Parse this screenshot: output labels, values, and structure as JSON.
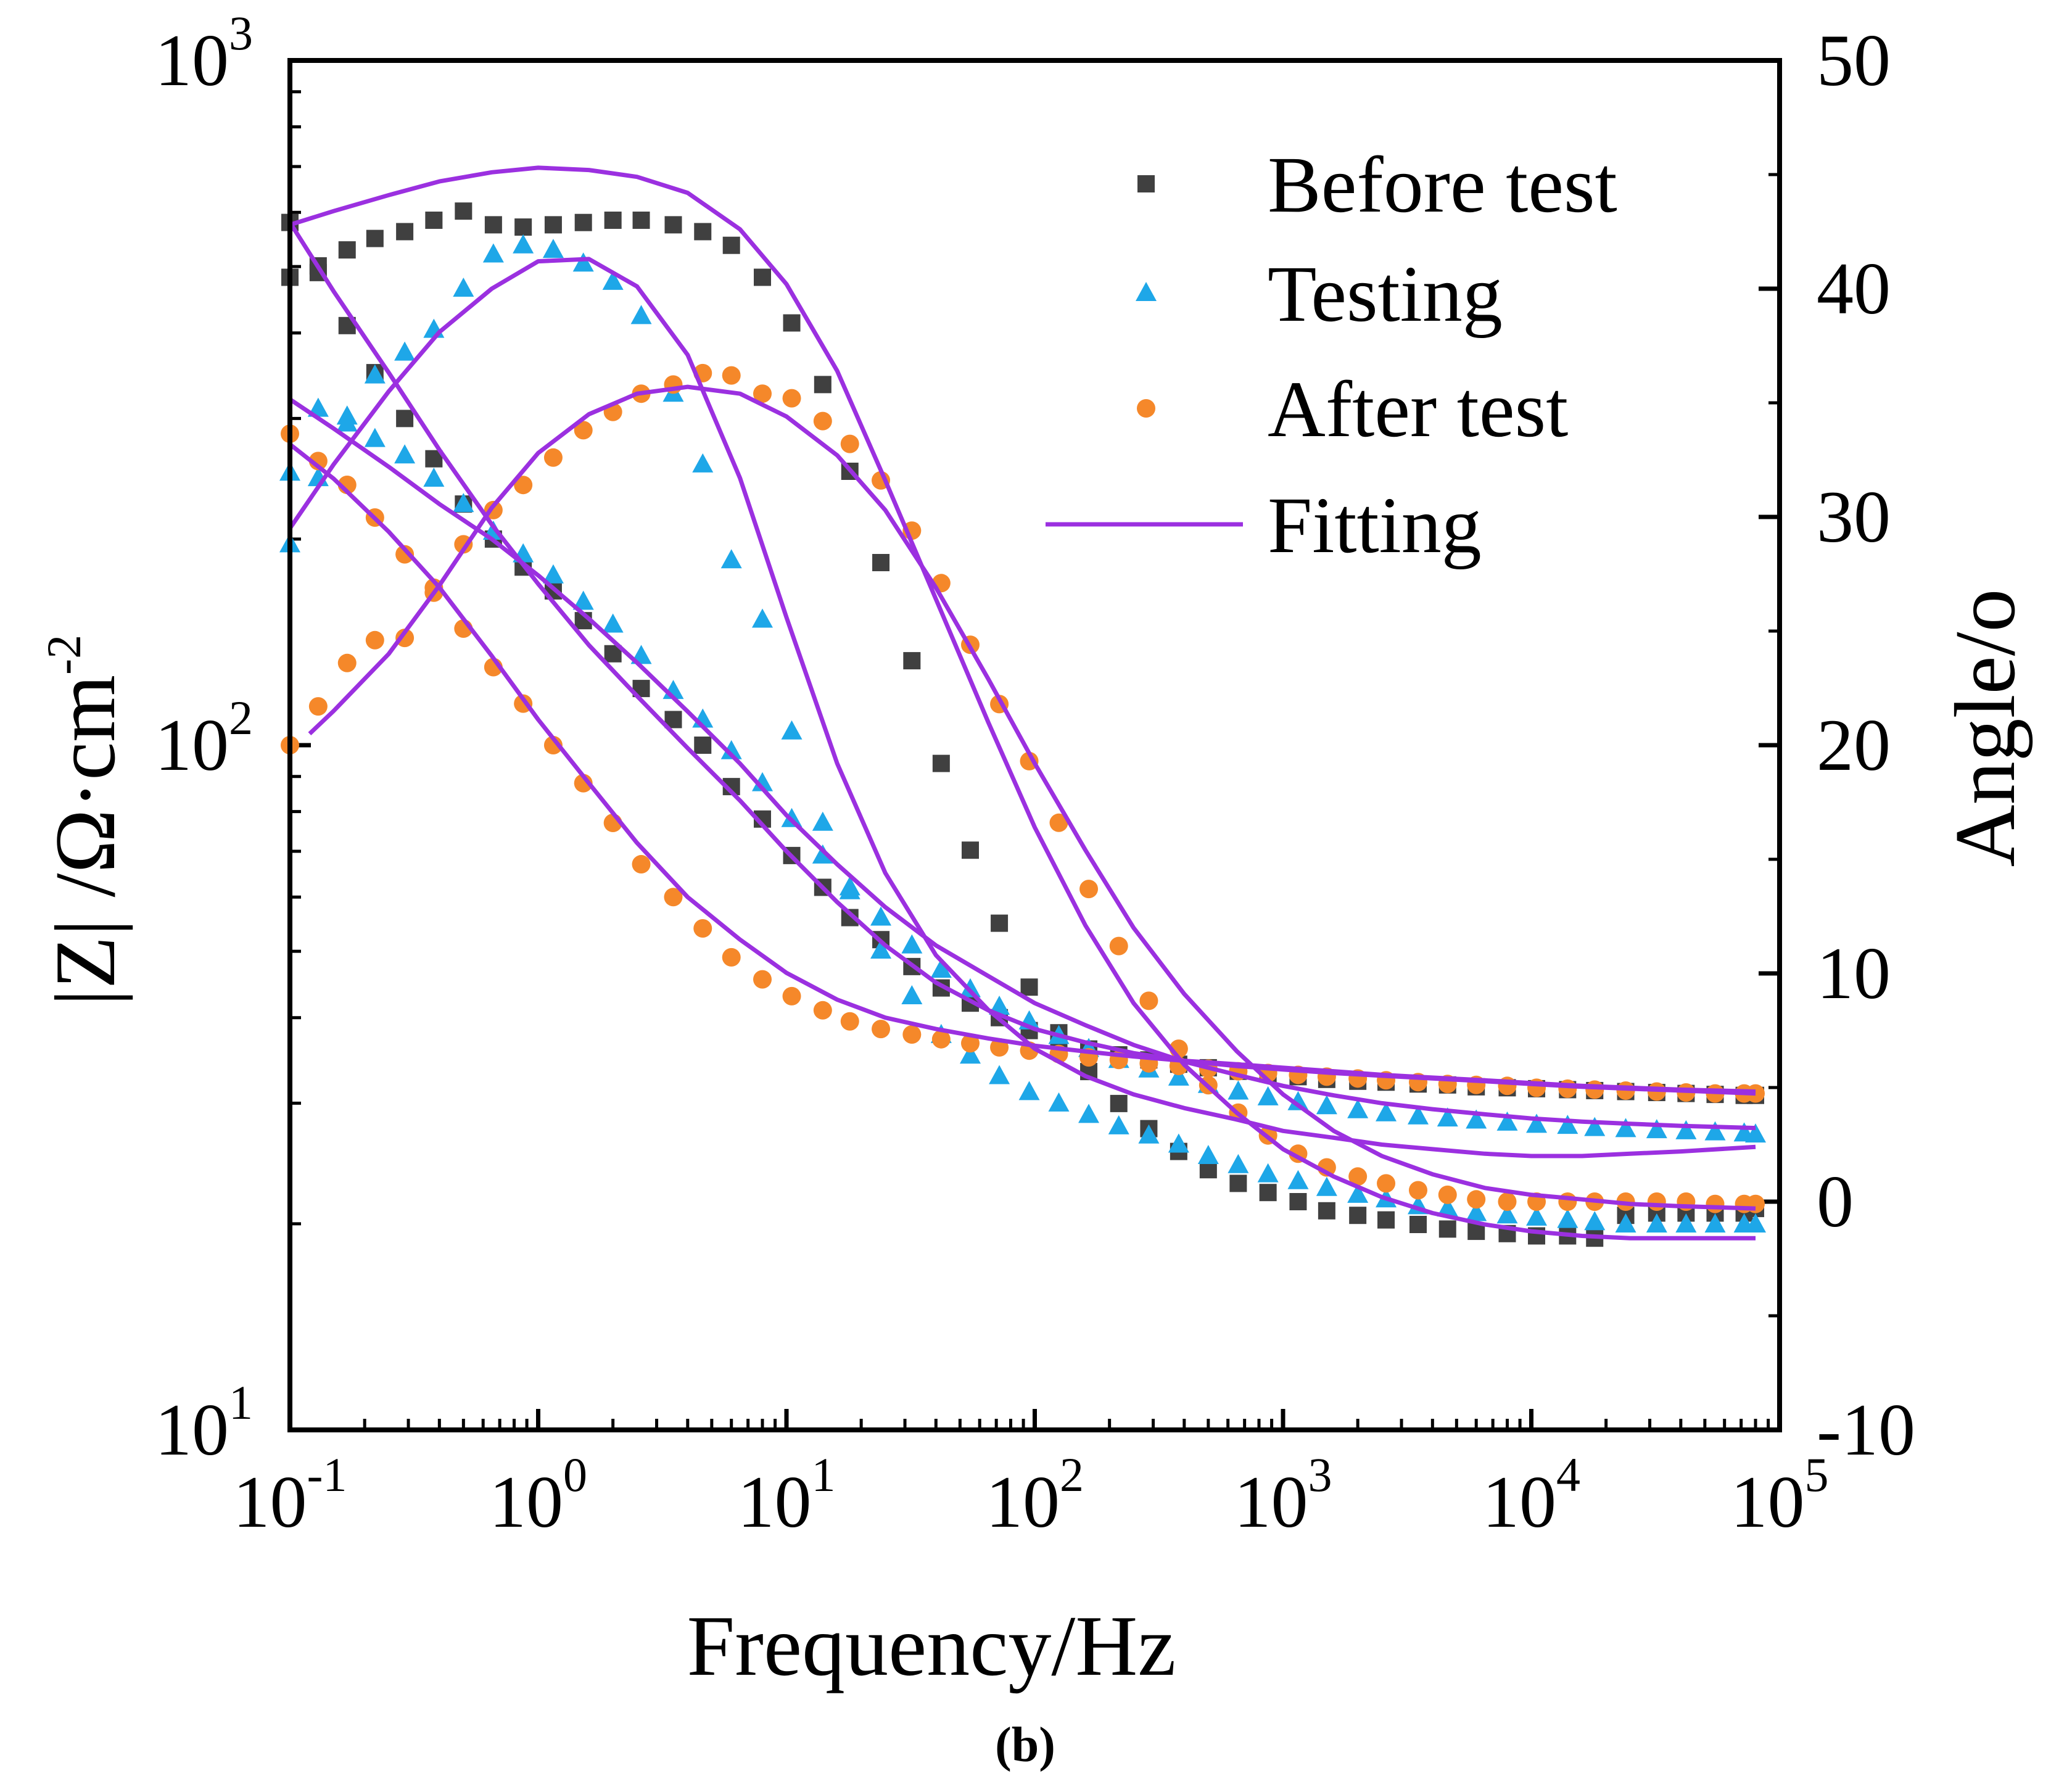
{
  "chart_data": {
    "type": "scatter",
    "caption": "b",
    "xlabel": "Frequency/Hz",
    "ylabel_left_pre": "|Z|",
    "ylabel_left_unit": " /Ω·cm",
    "ylabel_left_exp": "-2",
    "ylabel_right": "Angle/o",
    "x_scale": "log",
    "xlim": [
      0.1,
      100000
    ],
    "ylim_left": [
      10,
      1000
    ],
    "ylim_right": [
      -10,
      50
    ],
    "x_ticks": [
      {
        "value": 0.1,
        "base": "10",
        "exp": "-1"
      },
      {
        "value": 1,
        "base": "10",
        "exp": "0"
      },
      {
        "value": 10,
        "base": "10",
        "exp": "1"
      },
      {
        "value": 100,
        "base": "10",
        "exp": "2"
      },
      {
        "value": 1000,
        "base": "10",
        "exp": "3"
      },
      {
        "value": 10000,
        "base": "10",
        "exp": "4"
      },
      {
        "value": 100000,
        "base": "10",
        "exp": "5"
      }
    ],
    "y_left_ticks": [
      {
        "value": 10,
        "base": "10",
        "exp": "1"
      },
      {
        "value": 100,
        "base": "10",
        "exp": "2"
      },
      {
        "value": 1000,
        "base": "10",
        "exp": "3"
      }
    ],
    "y_right_ticks": [
      "-10",
      "0",
      "10",
      "20",
      "30",
      "40",
      "50"
    ],
    "legend": {
      "placement": "top-right",
      "entries": [
        {
          "label": "Before test",
          "marker": "square",
          "color": "#404040"
        },
        {
          "label": "Testing",
          "marker": "triangle",
          "color": "#1ea7e8"
        },
        {
          "label": "After test",
          "marker": "circle",
          "color": "#f5882a"
        },
        {
          "label": "Fitting",
          "marker": "line",
          "color": "#9b30e0"
        }
      ]
    },
    "series": [
      {
        "name": "Before test",
        "quantity": "impedance",
        "axis": "left",
        "marker": "square",
        "color": "#404040",
        "x": [
          0.1,
          0.13,
          0.17,
          0.22,
          0.29,
          0.38,
          0.5,
          0.66,
          0.87,
          1.15,
          1.52,
          2,
          2.6,
          3.5,
          4.6,
          6,
          8,
          10.5,
          14,
          18,
          24,
          32,
          42,
          55,
          72,
          95,
          125,
          165,
          218,
          288,
          380,
          500,
          660,
          870,
          1150,
          1500,
          2000,
          2600,
          3500,
          4600,
          6000,
          8000,
          10500,
          14000,
          18000,
          24000,
          32000,
          42000,
          55000,
          72000,
          80000
        ],
        "y": [
          580,
          490,
          410,
          350,
          300,
          262,
          225,
          200,
          182,
          168,
          152,
          136,
          121,
          109,
          100,
          87,
          78,
          69,
          62,
          56,
          52,
          47.5,
          44.2,
          42,
          40,
          38.3,
          37,
          36,
          35.3,
          34.7,
          34.2,
          33.8,
          33.4,
          33.1,
          32.8,
          32.5,
          32.3,
          32.2,
          32,
          31.9,
          31.7,
          31.6,
          31.5,
          31.4,
          31.3,
          31.2,
          31.1,
          31,
          30.9,
          30.8,
          30.8
        ]
      },
      {
        "name": "Before test",
        "quantity": "angle",
        "axis": "right",
        "marker": "square",
        "color": "#404040",
        "x": [
          0.1,
          0.13,
          0.17,
          0.22,
          0.29,
          0.38,
          0.5,
          0.66,
          0.87,
          1.15,
          1.52,
          2,
          2.6,
          3.5,
          4.6,
          6,
          8,
          10.5,
          14,
          18,
          24,
          32,
          42,
          55,
          72,
          95,
          125,
          165,
          218,
          288,
          380,
          500,
          660,
          870,
          1150,
          1500,
          2000,
          2600,
          3500,
          4600,
          6000,
          8000,
          10500,
          14000,
          18000,
          24000,
          32000,
          42000,
          55000,
          72000,
          80000
        ],
        "y": [
          40.5,
          41,
          41.7,
          42.2,
          42.5,
          43,
          43.4,
          42.8,
          42.7,
          42.8,
          42.9,
          43,
          43,
          42.8,
          42.5,
          41.9,
          40.5,
          38.5,
          35.8,
          32,
          28,
          23.7,
          19.2,
          15.4,
          12.2,
          9.4,
          7.4,
          5.7,
          4.3,
          3.2,
          2.2,
          1.4,
          0.8,
          0.4,
          0,
          -0.4,
          -0.6,
          -0.8,
          -1,
          -1.2,
          -1.3,
          -1.4,
          -1.5,
          -1.5,
          -1.6,
          -0.6,
          -0.5,
          -0.5,
          -0.5,
          -0.5,
          -0.3
        ]
      },
      {
        "name": "Testing",
        "quantity": "impedance",
        "axis": "left",
        "marker": "triangle",
        "color": "#1ea7e8",
        "x": [
          0.1,
          0.13,
          0.17,
          0.22,
          0.29,
          0.38,
          0.5,
          0.66,
          0.87,
          1.15,
          1.52,
          2,
          2.6,
          3.5,
          4.6,
          6,
          8,
          10.5,
          14,
          18,
          24,
          32,
          42,
          55,
          72,
          95,
          125,
          165,
          218,
          288,
          380,
          500,
          660,
          870,
          1150,
          1500,
          2000,
          2600,
          3500,
          4600,
          6000,
          8000,
          10500,
          14000,
          18000,
          24000,
          32000,
          42000,
          55000,
          72000,
          80000
        ],
        "y": [
          250,
          310,
          295,
          280,
          265,
          245,
          225,
          205,
          190,
          177,
          162,
          150,
          135,
          120,
          109,
          98,
          88,
          78,
          69,
          62,
          56,
          51,
          47,
          44,
          41.5,
          39.5,
          37.6,
          36,
          34.7,
          33.6,
          32.7,
          31.9,
          31.2,
          30.6,
          30.1,
          29.7,
          29.3,
          29,
          28.7,
          28.5,
          28.3,
          28.1,
          27.9,
          27.8,
          27.6,
          27.5,
          27.4,
          27.3,
          27.2,
          27.1,
          27
        ]
      },
      {
        "name": "Testing",
        "quantity": "angle",
        "axis": "right",
        "marker": "triangle",
        "color": "#1ea7e8",
        "x": [
          0.1,
          0.13,
          0.17,
          0.22,
          0.29,
          0.38,
          0.5,
          0.66,
          0.87,
          1.15,
          1.52,
          2,
          2.6,
          3.5,
          4.6,
          6,
          8,
          10.5,
          14,
          18,
          24,
          32,
          42,
          55,
          72,
          95,
          125,
          165,
          218,
          288,
          380,
          500,
          660,
          870,
          1150,
          1500,
          2000,
          2600,
          3500,
          4600,
          6000,
          8000,
          10500,
          14000,
          18000,
          24000,
          32000,
          42000,
          55000,
          72000,
          80000
        ],
        "y": [
          28.8,
          31.7,
          34.4,
          36.2,
          37.2,
          38.2,
          40,
          41.5,
          41.9,
          41.7,
          41.1,
          40.3,
          38.8,
          35.4,
          32.3,
          28.1,
          25.5,
          20.6,
          16.6,
          13.6,
          11,
          9,
          7.3,
          6.4,
          5.5,
          4.8,
          4.3,
          3.8,
          3.3,
          2.9,
          2.5,
          2,
          1.6,
          1.2,
          0.9,
          0.6,
          0.3,
          0.1,
          -0.2,
          -0.3,
          -0.5,
          -0.6,
          -0.7,
          -0.8,
          -0.9,
          -1,
          -1,
          -1,
          -1,
          -1,
          -1
        ]
      },
      {
        "name": "After test",
        "quantity": "impedance",
        "axis": "left",
        "marker": "circle",
        "color": "#f5882a",
        "x": [
          0.1,
          0.13,
          0.17,
          0.22,
          0.29,
          0.38,
          0.5,
          0.66,
          0.87,
          1.15,
          1.52,
          2,
          2.6,
          3.5,
          4.6,
          6,
          8,
          10.5,
          14,
          18,
          24,
          32,
          42,
          55,
          72,
          95,
          125,
          165,
          218,
          288,
          380,
          500,
          660,
          870,
          1150,
          1500,
          2000,
          2600,
          3500,
          4600,
          6000,
          8000,
          10500,
          14000,
          18000,
          24000,
          32000,
          42000,
          55000,
          72000,
          80000
        ],
        "y": [
          285,
          260,
          240,
          215,
          190,
          167,
          148,
          130,
          115,
          100,
          88,
          77,
          67,
          60,
          54,
          49,
          45.5,
          43,
          41,
          39.5,
          38.5,
          37.8,
          37.2,
          36.7,
          36.2,
          35.8,
          35.4,
          35,
          34.7,
          34.3,
          34,
          33.7,
          33.4,
          33.2,
          33,
          32.8,
          32.6,
          32.4,
          32.2,
          32,
          31.9,
          31.8,
          31.6,
          31.5,
          31.4,
          31.3,
          31.2,
          31.1,
          31,
          31,
          31
        ]
      },
      {
        "name": "After test",
        "quantity": "angle",
        "axis": "right",
        "marker": "circle",
        "color": "#f5882a",
        "x": [
          0.1,
          0.13,
          0.17,
          0.22,
          0.29,
          0.38,
          0.5,
          0.66,
          0.87,
          1.15,
          1.52,
          2,
          2.6,
          3.5,
          4.6,
          6,
          8,
          10.5,
          14,
          18,
          24,
          32,
          42,
          55,
          72,
          95,
          125,
          165,
          218,
          288,
          380,
          500,
          660,
          870,
          1150,
          1500,
          2000,
          2600,
          3500,
          4600,
          6000,
          8000,
          10500,
          14000,
          18000,
          24000,
          32000,
          42000,
          55000,
          72000,
          80000
        ],
        "y": [
          20,
          21.7,
          23.6,
          24.6,
          24.7,
          26.9,
          28.8,
          30.3,
          31.4,
          32.6,
          33.8,
          34.6,
          35.4,
          35.8,
          36.3,
          36.2,
          35.4,
          35.2,
          34.2,
          33.2,
          31.6,
          29.4,
          27.1,
          24.4,
          21.8,
          19.3,
          16.6,
          13.7,
          11.2,
          8.8,
          6.7,
          5.1,
          3.9,
          2.9,
          2.1,
          1.5,
          1.1,
          0.8,
          0.5,
          0.3,
          0.1,
          0,
          0,
          0,
          0,
          0,
          0,
          0,
          -0.1,
          -0.1,
          -0.1
        ]
      },
      {
        "name": "Fitting (Before test |Z|)",
        "quantity": "impedance",
        "axis": "left",
        "marker": "line",
        "color": "#9b30e0",
        "x": [
          0.1,
          0.15,
          0.25,
          0.4,
          0.65,
          1,
          1.6,
          2.5,
          4,
          6.5,
          10,
          16,
          25,
          40,
          65,
          100,
          160,
          250,
          400,
          650,
          1000,
          1600,
          2500,
          4000,
          6500,
          10000,
          16000,
          25000,
          40000,
          80000
        ],
        "y": [
          580,
          460,
          350,
          270,
          210,
          172,
          140,
          118,
          99,
          83,
          70,
          59,
          51,
          45,
          41,
          38.5,
          36.8,
          35.5,
          34.6,
          34,
          33.6,
          33.2,
          32.9,
          32.6,
          32.3,
          32,
          31.7,
          31.5,
          31.3,
          31
        ]
      },
      {
        "name": "Fitting (Testing |Z|)",
        "quantity": "impedance",
        "axis": "left",
        "marker": "line",
        "color": "#9b30e0",
        "x": [
          0.1,
          0.15,
          0.25,
          0.4,
          0.65,
          1,
          1.6,
          2.5,
          4,
          6.5,
          10,
          16,
          25,
          40,
          65,
          100,
          160,
          250,
          400,
          650,
          1000,
          1600,
          2500,
          4000,
          6500,
          10000,
          16000,
          25000,
          40000,
          80000
        ],
        "y": [
          320,
          290,
          255,
          225,
          200,
          177,
          153,
          132,
          112,
          94,
          79,
          67,
          58,
          51,
          46,
          42,
          39,
          36.5,
          34.5,
          33,
          31.8,
          30.8,
          30,
          29.4,
          28.9,
          28.5,
          28.2,
          28,
          27.8,
          27.6
        ]
      },
      {
        "name": "Fitting (After test |Z|)",
        "quantity": "impedance",
        "axis": "left",
        "marker": "line",
        "color": "#9b30e0",
        "x": [
          0.1,
          0.15,
          0.25,
          0.4,
          0.65,
          1,
          1.6,
          2.5,
          4,
          6.5,
          10,
          16,
          25,
          40,
          65,
          100,
          160,
          250,
          400,
          650,
          1000,
          1600,
          2500,
          4000,
          6500,
          10000,
          16000,
          25000,
          40000,
          80000
        ],
        "y": [
          275,
          245,
          205,
          170,
          135,
          109,
          88,
          72,
          60,
          52,
          46.5,
          42.5,
          40,
          38.5,
          37.3,
          36.4,
          35.7,
          35.1,
          34.6,
          34.2,
          33.8,
          33.4,
          33,
          32.7,
          32.4,
          32.1,
          31.8,
          31.6,
          31.4,
          31.2
        ]
      },
      {
        "name": "Fitting (Before test angle)",
        "quantity": "angle",
        "axis": "right",
        "marker": "line",
        "color": "#9b30e0",
        "x": [
          0.1,
          0.15,
          0.25,
          0.4,
          0.65,
          1,
          1.6,
          2.5,
          4,
          6.5,
          10,
          16,
          25,
          40,
          65,
          100,
          160,
          250,
          400,
          650,
          1000,
          1600,
          2500,
          4000,
          6500,
          10000,
          16000,
          25000,
          40000,
          80000
        ],
        "y": [
          42.8,
          43.4,
          44.1,
          44.7,
          45.1,
          45.3,
          45.2,
          44.9,
          44.2,
          42.6,
          40.2,
          36.4,
          31.6,
          26.4,
          21,
          16.4,
          12.1,
          8.7,
          6,
          3.9,
          2.3,
          1.1,
          0.2,
          -0.5,
          -1,
          -1.3,
          -1.5,
          -1.6,
          -1.6,
          -1.6
        ]
      },
      {
        "name": "Fitting (Testing angle)",
        "quantity": "angle",
        "axis": "right",
        "marker": "line",
        "color": "#9b30e0",
        "x": [
          0.1,
          0.15,
          0.25,
          0.4,
          0.65,
          1,
          1.6,
          2.5,
          4,
          6.5,
          10,
          16,
          25,
          40,
          65,
          100,
          160,
          250,
          400,
          650,
          1000,
          1600,
          2500,
          4000,
          6500,
          10000,
          16000,
          25000,
          40000,
          80000
        ],
        "y": [
          29.5,
          32.3,
          35.5,
          38.1,
          40,
          41.2,
          41.3,
          40.1,
          37.1,
          31.7,
          25.6,
          19.2,
          14.4,
          10.8,
          8.4,
          6.7,
          5.5,
          4.7,
          4.1,
          3.6,
          3.1,
          2.8,
          2.5,
          2.3,
          2.1,
          2,
          2,
          2.1,
          2.2,
          2.4
        ]
      },
      {
        "name": "Fitting (After test angle)",
        "quantity": "angle",
        "axis": "right",
        "marker": "line",
        "color": "#9b30e0",
        "x": [
          0.12,
          0.15,
          0.25,
          0.4,
          0.65,
          1,
          1.6,
          2.5,
          4,
          6.5,
          10,
          16,
          25,
          40,
          65,
          100,
          160,
          250,
          400,
          650,
          1000,
          1600,
          2500,
          4000,
          6500,
          10000,
          16000,
          25000,
          40000,
          80000
        ],
        "y": [
          20.5,
          21.5,
          24,
          27,
          30.4,
          32.8,
          34.5,
          35.4,
          35.7,
          35.4,
          34.4,
          32.7,
          30.3,
          26.9,
          22.9,
          19.2,
          15.4,
          12,
          9.1,
          6.6,
          4.7,
          3.1,
          2,
          1.2,
          0.6,
          0.3,
          0.1,
          -0.1,
          -0.2,
          -0.3
        ]
      }
    ]
  }
}
